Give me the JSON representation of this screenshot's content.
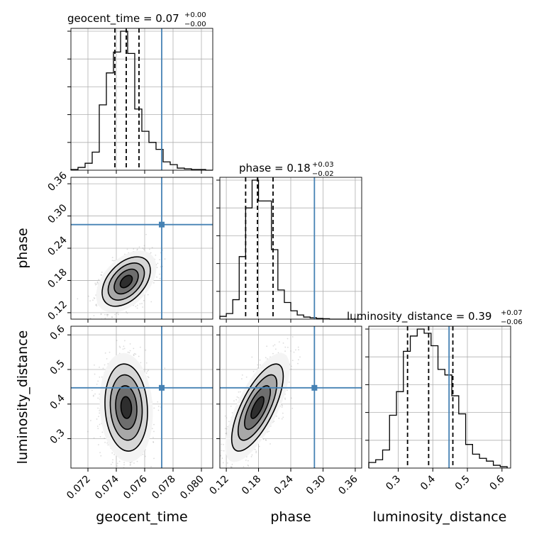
{
  "chart_data": {
    "type": "corner",
    "parameters": [
      {
        "key": "geocent_time",
        "label": "geocent_time",
        "range": [
          0.0708,
          0.0808
        ],
        "ticks": [
          0.072,
          0.074,
          0.076,
          0.078,
          0.08
        ],
        "tick_labels": [
          "0.072",
          "0.074",
          "0.076",
          "0.078",
          "0.080"
        ],
        "quantiles": [
          0.0739,
          0.0747,
          0.0756
        ],
        "truth": 0.0772
      },
      {
        "key": "phase",
        "label": "phase",
        "range": [
          0.108,
          0.372
        ],
        "ticks": [
          0.12,
          0.18,
          0.24,
          0.3,
          0.36
        ],
        "tick_labels": [
          "0.12",
          "0.18",
          "0.24",
          "0.30",
          "0.36"
        ],
        "quantiles": [
          0.156,
          0.178,
          0.207
        ],
        "truth": 0.284
      },
      {
        "key": "luminosity_distance",
        "label": "luminosity_distance",
        "range": [
          0.215,
          0.625
        ],
        "ticks": [
          0.3,
          0.4,
          0.5,
          0.6
        ],
        "tick_labels": [
          "0.3",
          "0.4",
          "0.5",
          "0.6"
        ],
        "quantiles": [
          0.327,
          0.388,
          0.458
        ],
        "truth": 0.447
      }
    ],
    "titles": [
      {
        "name": "geocent_time",
        "text": "geocent_time = 0.07",
        "sup": "+0.00",
        "sub": "−0.00"
      },
      {
        "name": "phase",
        "text": "phase = 0.18",
        "sup": "+0.03",
        "sub": "−0.02"
      },
      {
        "name": "luminosity_distance",
        "text": "luminosity_distance = 0.39",
        "sup": "+0.07",
        "sub": "−0.06"
      }
    ],
    "histograms": [
      {
        "param": "geocent_time",
        "bins": [
          0.0708,
          0.0713,
          0.0718,
          0.0723,
          0.0728,
          0.0733,
          0.0738,
          0.0743,
          0.0748,
          0.0753,
          0.0758,
          0.0763,
          0.0768,
          0.0773,
          0.0778,
          0.0783,
          0.0788,
          0.0793,
          0.0798,
          0.0803,
          0.0808
        ],
        "counts": [
          0.005,
          0.02,
          0.05,
          0.13,
          0.47,
          0.7,
          0.85,
          1.0,
          0.84,
          0.44,
          0.28,
          0.2,
          0.15,
          0.06,
          0.04,
          0.015,
          0.01,
          0.005,
          0.005,
          0.0
        ]
      },
      {
        "param": "phase",
        "bins": [
          0.108,
          0.12,
          0.132,
          0.144,
          0.156,
          0.168,
          0.18,
          0.192,
          0.204,
          0.216,
          0.228,
          0.24,
          0.252,
          0.264,
          0.276,
          0.288,
          0.3,
          0.312,
          0.324,
          0.336,
          0.348,
          0.36,
          0.372
        ],
        "counts": [
          0.02,
          0.04,
          0.14,
          0.45,
          0.8,
          1.0,
          0.85,
          0.85,
          0.5,
          0.21,
          0.12,
          0.06,
          0.03,
          0.015,
          0.01,
          0.005,
          0.003,
          0.0,
          0.0,
          0.0,
          0.0,
          0.0
        ]
      },
      {
        "param": "luminosity_distance",
        "bins": [
          0.215,
          0.235,
          0.255,
          0.275,
          0.295,
          0.315,
          0.335,
          0.355,
          0.375,
          0.395,
          0.415,
          0.435,
          0.455,
          0.475,
          0.495,
          0.515,
          0.535,
          0.555,
          0.575,
          0.595,
          0.615
        ],
        "counts": [
          0.04,
          0.06,
          0.13,
          0.38,
          0.55,
          0.84,
          0.95,
          1.0,
          0.97,
          0.88,
          0.71,
          0.67,
          0.52,
          0.39,
          0.17,
          0.1,
          0.07,
          0.05,
          0.02,
          0.01
        ]
      }
    ],
    "joint_2d": [
      {
        "x": "geocent_time",
        "y": "phase",
        "center": [
          0.0747,
          0.178
        ],
        "sd": [
          0.00085,
          0.023
        ],
        "rho": 0.45
      },
      {
        "x": "geocent_time",
        "y": "luminosity_distance",
        "center": [
          0.0747,
          0.39
        ],
        "sd": [
          0.00075,
          0.063
        ],
        "rho": -0.1
      },
      {
        "x": "phase",
        "y": "luminosity_distance",
        "center": [
          0.178,
          0.39
        ],
        "sd": [
          0.024,
          0.063
        ],
        "rho": 0.72
      }
    ],
    "colors": {
      "truth": "#4682b4",
      "hist": "#000000",
      "quantile": "#000000",
      "grid": "#b0b0b0",
      "samples": "#9a9a9a"
    },
    "grid": true
  }
}
